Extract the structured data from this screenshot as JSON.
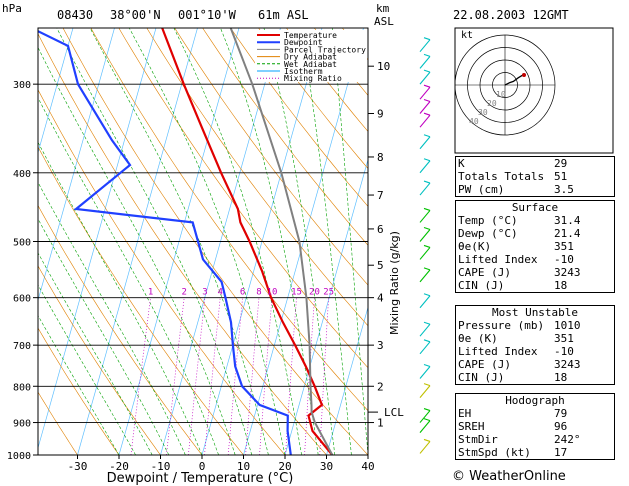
{
  "header": {
    "hpa_label": "hPa",
    "station": "08430",
    "lat": "38°00'N",
    "lon": "001°10'W",
    "elevation": "61m ASL",
    "km_label": "km",
    "asl_label": "ASL",
    "datetime": "22.08.2003 12GMT"
  },
  "legend": {
    "items": [
      {
        "label": "Temperature",
        "color": "#e00000"
      },
      {
        "label": "Dewpoint",
        "color": "#2040ff"
      },
      {
        "label": "Parcel Trajectory",
        "color": "#808080"
      },
      {
        "label": "Dry Adiabat",
        "color": "#e08000"
      },
      {
        "label": "Wet Adiabat",
        "color": "#00a000"
      },
      {
        "label": "Isotherm",
        "color": "#00a0ff"
      },
      {
        "label": "Mixing Ratio",
        "color": "#c000c0"
      }
    ]
  },
  "axes": {
    "xlabel": "Dewpoint / Temperature (°C)",
    "mixing_label": "Mixing Ratio (g/kg)",
    "hodo_label": "kt"
  },
  "chart_data": {
    "type": "line",
    "title": "",
    "x_ticks": [
      "-30",
      "-20",
      "-10",
      "0",
      "10",
      "20",
      "30",
      "40"
    ],
    "y_ticks": [
      "300",
      "400",
      "500",
      "600",
      "700",
      "800",
      "900",
      "1000"
    ],
    "km_ticks": [
      "1",
      "2",
      "3",
      "4",
      "5",
      "6",
      "7",
      "8",
      "9",
      "10"
    ],
    "lcl_label": "LCL",
    "mixing_ratio_ticks": [
      "1",
      "2",
      "3",
      "4",
      "6",
      "8",
      "10",
      "15",
      "20",
      "25"
    ],
    "hodo_rings": [
      "10",
      "20",
      "30",
      "40"
    ],
    "series": [
      {
        "name": "Temperature",
        "color": "#e00000",
        "p": [
          1000,
          925,
          880,
          850,
          800,
          750,
          700,
          650,
          600,
          550,
          500,
          470,
          450,
          400,
          350,
          300,
          250
        ],
        "t": [
          31.4,
          25.0,
          23.0,
          25.5,
          22.5,
          19.0,
          15.0,
          10.5,
          6.0,
          2.0,
          -3.0,
          -6.5,
          -8.0,
          -14.5,
          -21.5,
          -29.5,
          -38.5
        ]
      },
      {
        "name": "Dewpoint",
        "color": "#2040ff",
        "p": [
          1000,
          925,
          880,
          850,
          800,
          750,
          700,
          650,
          600,
          570,
          530,
          470,
          450,
          390,
          360,
          300,
          265,
          250
        ],
        "t": [
          21.4,
          19.0,
          18.0,
          10.5,
          5.0,
          2.0,
          0.0,
          -2.0,
          -5.0,
          -7.0,
          -13.0,
          -18.0,
          -47.0,
          -37.0,
          -43.0,
          -55.0,
          -60.0,
          -70.0
        ]
      },
      {
        "name": "Parcel Trajectory",
        "color": "#808080",
        "p": [
          1000,
          900,
          870,
          850,
          800,
          700,
          600,
          500,
          400,
          300,
          250
        ],
        "t": [
          31.4,
          25.0,
          23.5,
          23.0,
          21.5,
          18.5,
          14.5,
          9.0,
          0.0,
          -13.0,
          -22.0
        ]
      }
    ]
  },
  "hodograph": {
    "u": [
      0,
      2,
      4,
      7,
      11,
      16
    ],
    "v": [
      0,
      1,
      2,
      3,
      6,
      9
    ]
  },
  "indices": {
    "rows": [
      {
        "label": "K",
        "value": "29"
      },
      {
        "label": "Totals Totals",
        "value": "51"
      },
      {
        "label": "PW (cm)",
        "value": "3.5"
      }
    ]
  },
  "surface": {
    "title": "Surface",
    "rows": [
      {
        "label": "Temp (°C)",
        "value": "31.4"
      },
      {
        "label": "Dewp (°C)",
        "value": "21.4"
      },
      {
        "label": "θe(K)",
        "value": "351"
      },
      {
        "label": "Lifted Index",
        "value": "-10"
      },
      {
        "label": "CAPE (J)",
        "value": "3243"
      },
      {
        "label": "CIN (J)",
        "value": "18"
      }
    ]
  },
  "unstable": {
    "title": "Most Unstable",
    "rows": [
      {
        "label": "Pressure (mb)",
        "value": "1010"
      },
      {
        "label": "θe (K)",
        "value": "351"
      },
      {
        "label": "Lifted Index",
        "value": "-10"
      },
      {
        "label": "CAPE (J)",
        "value": "3243"
      },
      {
        "label": "CIN (J)",
        "value": "18"
      }
    ]
  },
  "hodo_table": {
    "title": "Hodograph",
    "rows": [
      {
        "label": "EH",
        "value": "79"
      },
      {
        "label": "SREH",
        "value": "96"
      },
      {
        "label": "StmDir",
        "value": "242°"
      },
      {
        "label": "StmSpd (kt)",
        "value": "17"
      }
    ]
  },
  "footer": {
    "copyright": "© WeatherOnline"
  }
}
